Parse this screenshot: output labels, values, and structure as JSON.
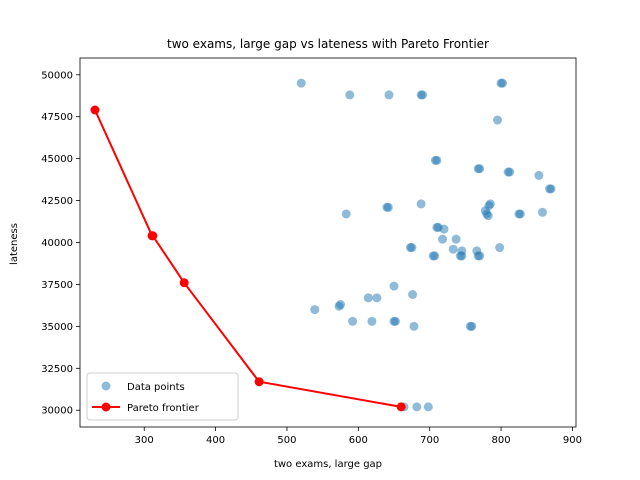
{
  "chart_data": {
    "type": "scatter",
    "title": "two exams, large gap vs lateness with Pareto Frontier",
    "xlabel": "two exams, large gap",
    "ylabel": "lateness",
    "xlim": [
      210,
      905
    ],
    "ylim": [
      29000,
      51000
    ],
    "xticks": [
      300,
      400,
      500,
      600,
      700,
      800,
      900
    ],
    "yticks": [
      30000,
      32500,
      35000,
      37500,
      40000,
      42500,
      45000,
      47500,
      50000
    ],
    "xtick_labels": [
      "300",
      "400",
      "500",
      "600",
      "700",
      "800",
      "900"
    ],
    "ytick_labels": [
      "30000",
      "32500",
      "35000",
      "37500",
      "40000",
      "42500",
      "45000",
      "47500",
      "50000"
    ],
    "grid": false,
    "legend": {
      "placement": "lower-left",
      "entries": [
        "Data points",
        "Pareto frontier"
      ]
    },
    "colors": {
      "data_points": "#1f77b4",
      "pareto": "#ff0000"
    },
    "series": [
      {
        "name": "Data points",
        "kind": "scatter",
        "points": [
          [
            520,
            49500
          ],
          [
            588,
            48800
          ],
          [
            643,
            48800
          ],
          [
            688,
            48800
          ],
          [
            690,
            48800
          ],
          [
            800,
            49500
          ],
          [
            802,
            49500
          ],
          [
            795,
            47300
          ],
          [
            708,
            44900
          ],
          [
            710,
            44900
          ],
          [
            768,
            44400
          ],
          [
            770,
            44400
          ],
          [
            810,
            44200
          ],
          [
            812,
            44200
          ],
          [
            853,
            44000
          ],
          [
            868,
            43200
          ],
          [
            870,
            43200
          ],
          [
            640,
            42100
          ],
          [
            642,
            42100
          ],
          [
            688,
            42300
          ],
          [
            785,
            42300
          ],
          [
            783,
            42200
          ],
          [
            583,
            41700
          ],
          [
            778,
            41900
          ],
          [
            780,
            41700
          ],
          [
            782,
            41600
          ],
          [
            825,
            41700
          ],
          [
            827,
            41700
          ],
          [
            858,
            41800
          ],
          [
            710,
            40900
          ],
          [
            712,
            40900
          ],
          [
            720,
            40800
          ],
          [
            718,
            40200
          ],
          [
            737,
            40200
          ],
          [
            733,
            39600
          ],
          [
            673,
            39700
          ],
          [
            675,
            39700
          ],
          [
            705,
            39200
          ],
          [
            707,
            39200
          ],
          [
            745,
            39500
          ],
          [
            743,
            39200
          ],
          [
            745,
            39200
          ],
          [
            766,
            39500
          ],
          [
            768,
            39200
          ],
          [
            770,
            39200
          ],
          [
            798,
            39700
          ],
          [
            650,
            37400
          ],
          [
            676,
            36900
          ],
          [
            614,
            36700
          ],
          [
            626,
            36700
          ],
          [
            573,
            36200
          ],
          [
            575,
            36300
          ],
          [
            539,
            36000
          ],
          [
            592,
            35300
          ],
          [
            619,
            35300
          ],
          [
            650,
            35300
          ],
          [
            652,
            35300
          ],
          [
            678,
            35000
          ],
          [
            757,
            35000
          ],
          [
            759,
            35000
          ],
          [
            664,
            30200
          ],
          [
            682,
            30200
          ],
          [
            698,
            30200
          ]
        ]
      },
      {
        "name": "Pareto frontier",
        "kind": "line",
        "points": [
          [
            231,
            47900
          ],
          [
            311,
            40400
          ],
          [
            312,
            40400
          ],
          [
            356,
            37600
          ],
          [
            461,
            31700
          ],
          [
            660,
            30200
          ]
        ]
      }
    ]
  }
}
